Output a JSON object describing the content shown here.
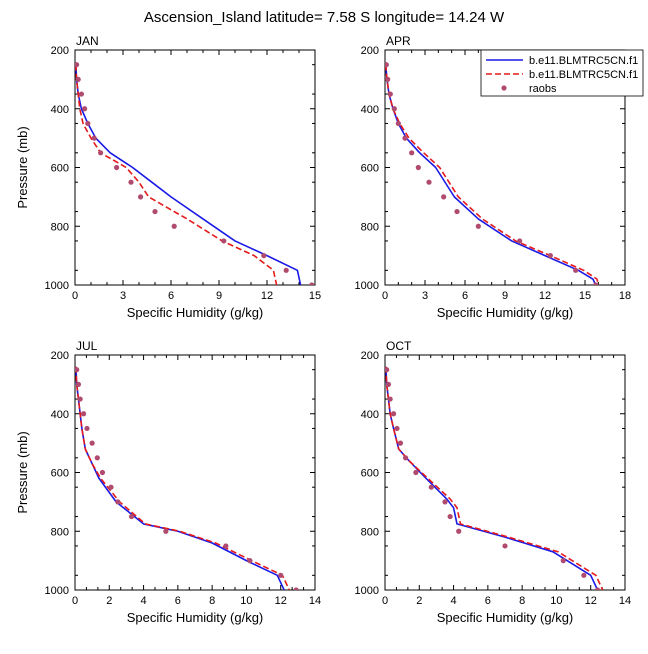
{
  "title": "Ascension_Island  latitude= 7.58 S longitude= 14.24 W",
  "legend": [
    {
      "name": "b.e11.BLMTRC5CN.f1",
      "style": "solid",
      "color": "#1a1ae6"
    },
    {
      "name": "b.e11.BLMTRC5CN.f1",
      "style": "dashed",
      "color": "#e61a1a"
    },
    {
      "name": "raobs",
      "style": "dots",
      "color": "#b04a6e"
    }
  ],
  "chart_data": [
    {
      "type": "line",
      "panel": "JAN",
      "title": "JAN",
      "xlabel": "Specific Humidity (g/kg)",
      "ylabel": "Pressure (mb)",
      "xlim": [
        0,
        15
      ],
      "ylim": [
        1000,
        200
      ],
      "xticks": [
        0,
        3,
        6,
        9,
        12,
        15
      ],
      "yticks": [
        200,
        400,
        600,
        800,
        1000
      ],
      "series": [
        {
          "name": "b.e11.BLMTRC5CN.f1",
          "color": "#1a1ae6",
          "style": "solid",
          "x": [
            0.05,
            0.1,
            0.2,
            0.4,
            0.8,
            1.3,
            2.2,
            3.6,
            4.8,
            6.0,
            8.0,
            10.0,
            12.0,
            13.9,
            14.1
          ],
          "y": [
            250,
            300,
            350,
            400,
            450,
            500,
            550,
            600,
            650,
            700,
            775,
            850,
            900,
            950,
            1000
          ]
        },
        {
          "name": "b.e11.BLMTRC5CN.f1",
          "color": "#e61a1a",
          "style": "dashed",
          "x": [
            0.05,
            0.1,
            0.2,
            0.3,
            0.5,
            1.0,
            1.6,
            3.2,
            4.0,
            4.6,
            7.0,
            9.2,
            11.2,
            12.4,
            12.6
          ],
          "y": [
            250,
            300,
            350,
            400,
            450,
            500,
            550,
            600,
            650,
            700,
            775,
            850,
            900,
            950,
            1000
          ]
        },
        {
          "name": "raobs",
          "color": "#b04a6e",
          "style": "dots",
          "x": [
            0.1,
            0.2,
            0.4,
            0.6,
            0.8,
            1.2,
            1.6,
            2.6,
            3.5,
            4.1,
            5.0,
            6.2,
            9.3,
            11.8,
            13.2,
            14.8
          ],
          "y": [
            250,
            300,
            350,
            400,
            450,
            500,
            550,
            600,
            650,
            700,
            750,
            800,
            850,
            900,
            950,
            1000
          ]
        }
      ]
    },
    {
      "type": "line",
      "panel": "APR",
      "title": "APR",
      "xlabel": "Specific Humidity (g/kg)",
      "ylabel": "",
      "xlim": [
        0,
        18
      ],
      "ylim": [
        1000,
        200
      ],
      "xticks": [
        0,
        3,
        6,
        9,
        12,
        15,
        18
      ],
      "yticks": [
        200,
        400,
        600,
        800,
        1000
      ],
      "series": [
        {
          "name": "b.e11.BLMTRC5CN.f1",
          "color": "#1a1ae6",
          "style": "solid",
          "x": [
            0.05,
            0.15,
            0.3,
            0.6,
            1.0,
            1.6,
            2.6,
            3.8,
            5.2,
            7.0,
            9.5,
            12.0,
            14.5,
            15.6,
            15.8
          ],
          "y": [
            250,
            300,
            350,
            400,
            450,
            500,
            550,
            600,
            700,
            775,
            850,
            900,
            950,
            980,
            1000
          ]
        },
        {
          "name": "b.e11.BLMTRC5CN.f1",
          "color": "#e61a1a",
          "style": "dashed",
          "x": [
            0.05,
            0.15,
            0.3,
            0.6,
            1.1,
            1.8,
            2.9,
            4.1,
            5.5,
            7.3,
            9.8,
            12.4,
            14.9,
            15.9,
            16.0
          ],
          "y": [
            250,
            300,
            350,
            400,
            450,
            500,
            550,
            600,
            700,
            775,
            850,
            900,
            950,
            980,
            1000
          ]
        },
        {
          "name": "raobs",
          "color": "#b04a6e",
          "style": "dots",
          "x": [
            0.1,
            0.2,
            0.4,
            0.7,
            1.0,
            1.5,
            2.0,
            2.5,
            3.3,
            4.4,
            5.4,
            7.0,
            10.1,
            12.4,
            14.3,
            15.8
          ],
          "y": [
            250,
            300,
            350,
            400,
            450,
            500,
            550,
            600,
            650,
            700,
            750,
            800,
            850,
            900,
            950,
            1000
          ]
        }
      ]
    },
    {
      "type": "line",
      "panel": "JUL",
      "title": "JUL",
      "xlabel": "Specific Humidity (g/kg)",
      "ylabel": "Pressure (mb)",
      "xlim": [
        0,
        14
      ],
      "ylim": [
        1000,
        200
      ],
      "xticks": [
        0,
        2,
        4,
        6,
        8,
        10,
        12,
        14
      ],
      "yticks": [
        200,
        400,
        600,
        800,
        1000
      ],
      "series": [
        {
          "name": "b.e11.BLMTRC5CN.f1",
          "color": "#1a1ae6",
          "style": "solid",
          "x": [
            0.05,
            0.1,
            0.2,
            0.3,
            0.4,
            0.6,
            1.0,
            1.4,
            2.4,
            4.0,
            6.0,
            8.0,
            10.0,
            11.8,
            12.2
          ],
          "y": [
            240,
            300,
            350,
            400,
            450,
            520,
            570,
            620,
            700,
            775,
            800,
            840,
            900,
            950,
            1000
          ]
        },
        {
          "name": "b.e11.BLMTRC5CN.f1",
          "color": "#e61a1a",
          "style": "dashed",
          "x": [
            0.05,
            0.1,
            0.2,
            0.3,
            0.4,
            0.6,
            1.0,
            1.5,
            2.6,
            4.1,
            6.1,
            8.2,
            10.3,
            12.1,
            12.5
          ],
          "y": [
            240,
            300,
            350,
            400,
            450,
            520,
            570,
            620,
            700,
            775,
            800,
            840,
            900,
            950,
            1000
          ]
        },
        {
          "name": "raobs",
          "color": "#b04a6e",
          "style": "dots",
          "x": [
            0.1,
            0.2,
            0.3,
            0.5,
            0.7,
            1.0,
            1.3,
            1.6,
            2.1,
            2.5,
            3.3,
            5.3,
            8.8,
            10.2,
            12.0,
            12.9
          ],
          "y": [
            250,
            300,
            350,
            400,
            450,
            500,
            550,
            600,
            650,
            700,
            750,
            800,
            850,
            900,
            950,
            1000
          ]
        }
      ]
    },
    {
      "type": "line",
      "panel": "OCT",
      "title": "OCT",
      "xlabel": "Specific Humidity (g/kg)",
      "ylabel": "",
      "xlim": [
        0,
        14
      ],
      "ylim": [
        1000,
        200
      ],
      "xticks": [
        0,
        2,
        4,
        6,
        8,
        10,
        12,
        14
      ],
      "yticks": [
        200,
        400,
        600,
        800,
        1000
      ],
      "series": [
        {
          "name": "b.e11.BLMTRC5CN.f1",
          "color": "#1a1ae6",
          "style": "solid",
          "x": [
            0.05,
            0.1,
            0.2,
            0.3,
            0.5,
            0.8,
            1.4,
            2.4,
            3.6,
            4.0,
            4.2,
            7.0,
            9.8,
            12.0,
            12.4
          ],
          "y": [
            240,
            300,
            350,
            400,
            450,
            520,
            560,
            620,
            690,
            720,
            775,
            820,
            870,
            950,
            1000
          ]
        },
        {
          "name": "b.e11.BLMTRC5CN.f1",
          "color": "#e61a1a",
          "style": "dashed",
          "x": [
            0.05,
            0.1,
            0.2,
            0.3,
            0.5,
            0.8,
            1.4,
            2.5,
            3.8,
            4.2,
            4.4,
            7.2,
            10.1,
            12.3,
            12.7
          ],
          "y": [
            240,
            300,
            350,
            400,
            450,
            520,
            560,
            620,
            690,
            720,
            775,
            820,
            870,
            950,
            1000
          ]
        },
        {
          "name": "raobs",
          "color": "#b04a6e",
          "style": "dots",
          "x": [
            0.1,
            0.2,
            0.3,
            0.5,
            0.7,
            0.9,
            1.2,
            1.8,
            2.7,
            3.5,
            3.8,
            4.3,
            7.0,
            10.4,
            11.6,
            12.4
          ],
          "y": [
            250,
            300,
            350,
            400,
            450,
            500,
            550,
            600,
            650,
            700,
            750,
            800,
            850,
            900,
            950,
            1000
          ]
        }
      ]
    }
  ]
}
